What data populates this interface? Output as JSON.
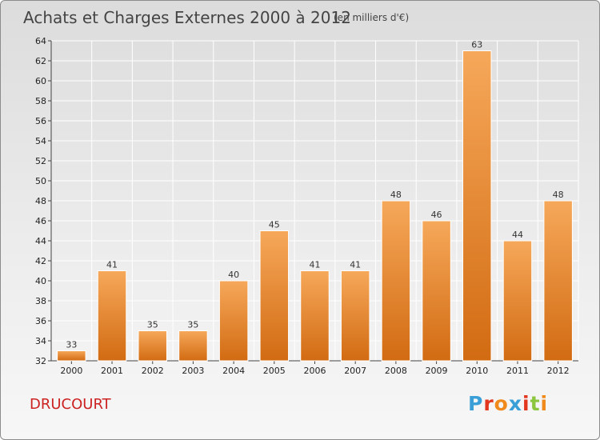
{
  "title": "Achats et Charges Externes 2000 à 2012",
  "subtitle": "(en milliers d'€)",
  "commune": "DRUCOURT",
  "logo": {
    "text": "Proxiti",
    "letter_colors": [
      "#3a9fd6",
      "#e2361f",
      "#f08a1c",
      "#3a9fd6",
      "#e2361f",
      "#8cc63f",
      "#f08a1c"
    ]
  },
  "colors": {
    "bar_light": "#f6a85a",
    "bar_dark": "#d26b12",
    "grid": "#ffffff",
    "axis": "#444444",
    "title": "#444444",
    "commune": "#cc2222"
  },
  "chart_data": {
    "type": "bar",
    "categories": [
      "2000",
      "2001",
      "2002",
      "2003",
      "2004",
      "2005",
      "2006",
      "2007",
      "2008",
      "2009",
      "2010",
      "2011",
      "2012"
    ],
    "values": [
      33,
      41,
      35,
      35,
      40,
      45,
      41,
      41,
      48,
      46,
      63,
      44,
      48
    ],
    "title": "Achats et Charges Externes 2000 à 2012",
    "subtitle": "(en milliers d'€)",
    "xlabel": "",
    "ylabel": "",
    "ylim": [
      32,
      64
    ],
    "yticks": [
      32,
      34,
      36,
      38,
      40,
      42,
      44,
      46,
      48,
      50,
      52,
      54,
      56,
      58,
      60,
      62,
      64
    ],
    "grid": true,
    "legend": "none"
  }
}
